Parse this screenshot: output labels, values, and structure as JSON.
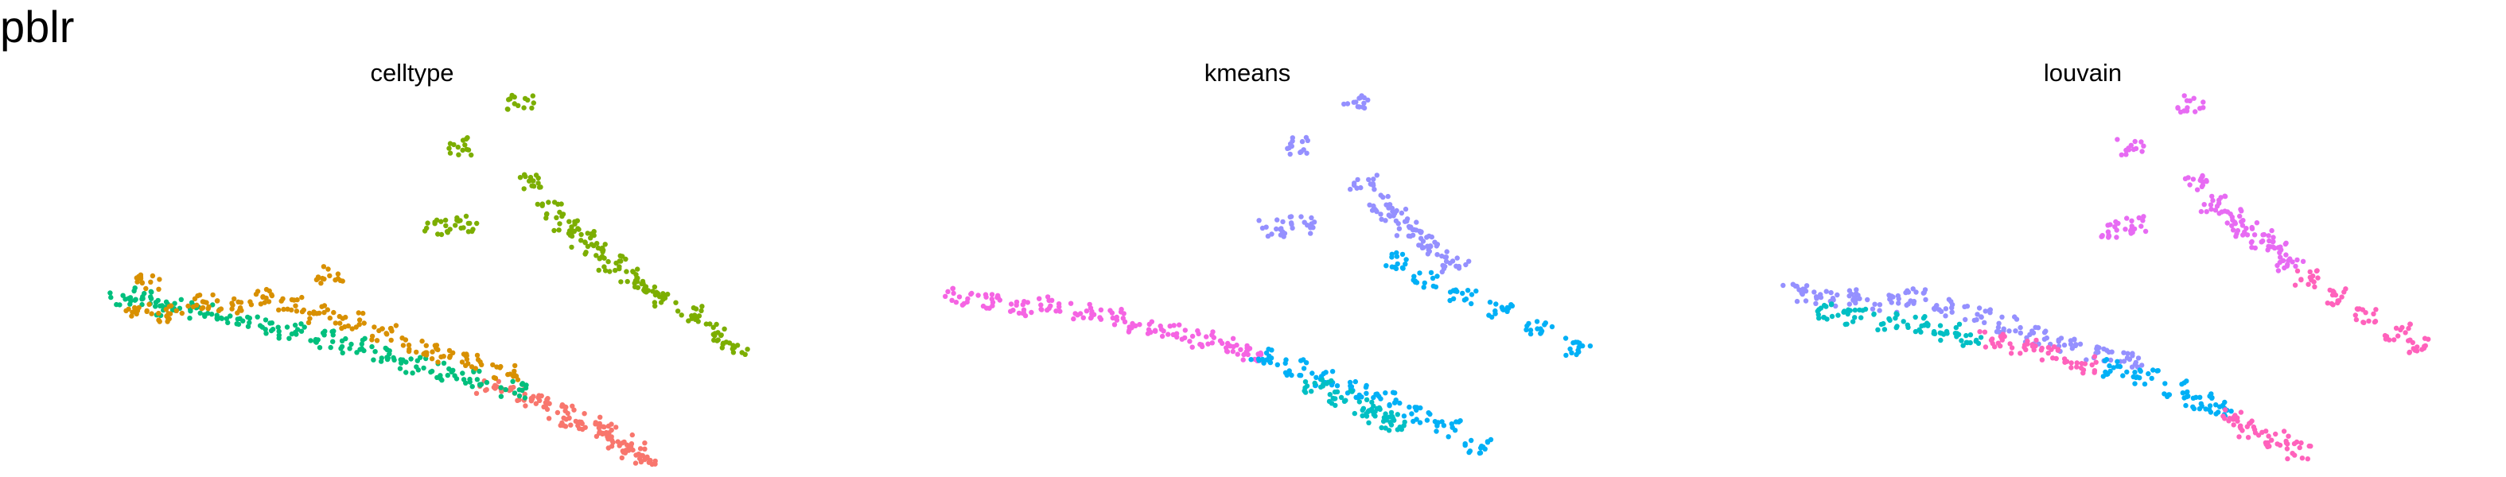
{
  "title": "pblr",
  "chart_data": [
    {
      "type": "scatter",
      "title": "celltype",
      "xlabel": "",
      "ylabel": "",
      "grid": false,
      "legend": "none",
      "xlim": [
        0,
        10
      ],
      "ylim": [
        0,
        10
      ],
      "series": [
        {
          "color": "#F8766D",
          "values": [
            [
              6.0,
              2.1
            ],
            [
              6.3,
              1.9
            ],
            [
              6.6,
              1.7
            ],
            [
              6.9,
              1.4
            ],
            [
              7.1,
              1.2
            ],
            [
              7.3,
              1.0
            ],
            [
              7.5,
              0.8
            ],
            [
              7.7,
              0.5
            ],
            [
              7.85,
              0.3
            ],
            [
              8.0,
              0.15
            ]
          ]
        },
        {
          "color": "#7CAE00",
          "values": [
            [
              6.5,
              7.8
            ],
            [
              6.8,
              7.0
            ],
            [
              7.0,
              6.5
            ],
            [
              7.2,
              6.2
            ],
            [
              7.4,
              5.9
            ],
            [
              7.6,
              5.5
            ],
            [
              7.8,
              5.2
            ],
            [
              8.0,
              4.9
            ],
            [
              8.3,
              4.5
            ],
            [
              8.6,
              4.1
            ],
            [
              8.9,
              3.6
            ],
            [
              9.2,
              3.2
            ],
            [
              6.4,
              10.0
            ],
            [
              5.6,
              8.8
            ],
            [
              5.3,
              6.5
            ],
            [
              5.7,
              6.6
            ]
          ]
        },
        {
          "color": "#00BF7D",
          "values": [
            [
              1.2,
              4.6
            ],
            [
              1.6,
              4.5
            ],
            [
              1.8,
              4.3
            ],
            [
              2.2,
              4.2
            ],
            [
              2.6,
              4.0
            ],
            [
              3.0,
              3.8
            ],
            [
              3.4,
              3.6
            ],
            [
              3.8,
              3.4
            ],
            [
              4.2,
              3.2
            ],
            [
              4.6,
              3.0
            ],
            [
              5.0,
              2.7
            ],
            [
              5.4,
              2.5
            ],
            [
              5.8,
              2.3
            ],
            [
              6.3,
              2.0
            ]
          ]
        },
        {
          "color": "#D89000",
          "values": [
            [
              1.4,
              4.2
            ],
            [
              1.8,
              4.1
            ],
            [
              2.2,
              4.5
            ],
            [
              2.6,
              4.3
            ],
            [
              3.0,
              4.6
            ],
            [
              3.4,
              4.4
            ],
            [
              3.8,
              4.1
            ],
            [
              4.2,
              3.9
            ],
            [
              4.6,
              3.6
            ],
            [
              5.0,
              3.2
            ],
            [
              5.4,
              3.0
            ],
            [
              5.8,
              2.8
            ],
            [
              6.2,
              2.5
            ],
            [
              1.5,
              5.0
            ],
            [
              3.9,
              5.2
            ]
          ]
        }
      ]
    },
    {
      "type": "scatter",
      "title": "kmeans",
      "xlabel": "",
      "ylabel": "",
      "grid": false,
      "legend": "none",
      "xlim": [
        0,
        10
      ],
      "ylim": [
        0,
        10
      ],
      "series": [
        {
          "color": "#F564E3",
          "values": [
            [
              1.2,
              4.6
            ],
            [
              1.6,
              4.5
            ],
            [
              2.0,
              4.3
            ],
            [
              2.4,
              4.4
            ],
            [
              2.8,
              4.2
            ],
            [
              3.2,
              4.0
            ],
            [
              3.6,
              3.8
            ],
            [
              4.0,
              3.6
            ],
            [
              4.4,
              3.4
            ],
            [
              4.8,
              3.2
            ],
            [
              5.0,
              3.0
            ]
          ]
        },
        {
          "color": "#00B0F6",
          "values": [
            [
              5.2,
              2.9
            ],
            [
              5.6,
              2.6
            ],
            [
              6.0,
              2.3
            ],
            [
              6.4,
              2.0
            ],
            [
              6.8,
              1.7
            ],
            [
              7.2,
              1.3
            ],
            [
              7.6,
              0.9
            ],
            [
              8.0,
              0.4
            ],
            [
              6.9,
              5.6
            ],
            [
              7.3,
              5.1
            ],
            [
              7.8,
              4.6
            ],
            [
              8.3,
              4.2
            ],
            [
              8.8,
              3.7
            ],
            [
              9.3,
              3.2
            ]
          ]
        },
        {
          "color": "#00BFC4",
          "values": [
            [
              5.9,
              2.1
            ],
            [
              6.2,
              1.8
            ],
            [
              6.5,
              1.5
            ],
            [
              6.7,
              1.3
            ],
            [
              6.9,
              1.1
            ]
          ]
        },
        {
          "color": "#9590FF",
          "values": [
            [
              6.5,
              7.8
            ],
            [
              6.7,
              7.2
            ],
            [
              6.9,
              6.8
            ],
            [
              7.1,
              6.5
            ],
            [
              7.3,
              6.2
            ],
            [
              7.5,
              5.9
            ],
            [
              7.7,
              5.5
            ],
            [
              6.4,
              10.0
            ],
            [
              5.6,
              8.8
            ],
            [
              5.3,
              6.5
            ],
            [
              5.7,
              6.6
            ]
          ]
        }
      ]
    },
    {
      "type": "scatter",
      "title": "louvain",
      "xlabel": "",
      "ylabel": "",
      "grid": false,
      "legend": "none",
      "xlim": [
        0,
        10
      ],
      "ylim": [
        0,
        10
      ],
      "series": [
        {
          "color": "#9590FF",
          "values": [
            [
              1.2,
              4.7
            ],
            [
              1.6,
              4.5
            ],
            [
              2.0,
              4.6
            ],
            [
              2.4,
              4.4
            ],
            [
              2.8,
              4.6
            ],
            [
              3.2,
              4.3
            ],
            [
              3.6,
              4.1
            ],
            [
              4.0,
              3.8
            ],
            [
              4.4,
              3.5
            ],
            [
              4.8,
              3.2
            ],
            [
              5.2,
              3.0
            ],
            [
              5.6,
              2.8
            ]
          ]
        },
        {
          "color": "#00BFC4",
          "values": [
            [
              1.6,
              4.2
            ],
            [
              2.0,
              4.0
            ],
            [
              2.4,
              3.9
            ],
            [
              2.8,
              3.8
            ],
            [
              3.2,
              3.6
            ],
            [
              3.5,
              3.4
            ]
          ]
        },
        {
          "color": "#00B0F6",
          "values": [
            [
              5.4,
              2.6
            ],
            [
              5.8,
              2.3
            ],
            [
              6.2,
              2.0
            ],
            [
              6.5,
              1.7
            ],
            [
              6.8,
              1.4
            ]
          ]
        },
        {
          "color": "#FF62BC",
          "values": [
            [
              3.8,
              3.4
            ],
            [
              4.2,
              3.2
            ],
            [
              4.6,
              3.0
            ],
            [
              5.0,
              2.7
            ],
            [
              6.9,
              1.2
            ],
            [
              7.2,
              0.9
            ],
            [
              7.5,
              0.6
            ],
            [
              7.8,
              0.3
            ],
            [
              7.9,
              5.1
            ],
            [
              8.3,
              4.6
            ],
            [
              8.7,
              4.1
            ],
            [
              9.1,
              3.6
            ],
            [
              9.4,
              3.2
            ]
          ]
        },
        {
          "color": "#E76BF3",
          "values": [
            [
              6.5,
              7.8
            ],
            [
              6.7,
              7.2
            ],
            [
              6.9,
              6.8
            ],
            [
              7.1,
              6.5
            ],
            [
              7.3,
              6.2
            ],
            [
              7.5,
              5.9
            ],
            [
              7.7,
              5.5
            ],
            [
              6.4,
              10.0
            ],
            [
              5.6,
              8.8
            ],
            [
              5.3,
              6.5
            ],
            [
              5.7,
              6.6
            ]
          ]
        }
      ]
    }
  ]
}
